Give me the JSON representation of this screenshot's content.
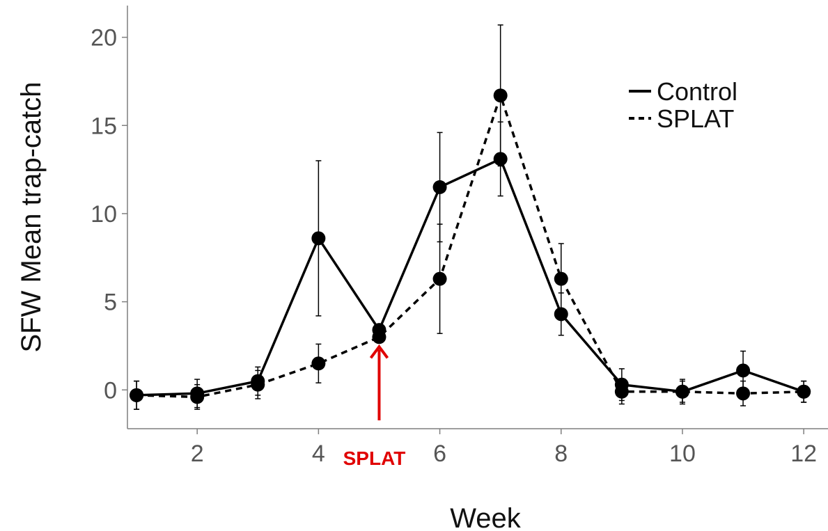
{
  "chart_data": {
    "type": "line",
    "title": "",
    "xlabel": "Week",
    "ylabel": "SFW Mean trap-catch",
    "xlim": [
      0.85,
      12.4
    ],
    "ylim": [
      -2.2,
      21.8
    ],
    "xticks": [
      2,
      4,
      6,
      8,
      10,
      12
    ],
    "xtick_labels": [
      "2",
      "4",
      "6",
      "8",
      "10",
      "12"
    ],
    "yticks": [
      0,
      5,
      10,
      15,
      20
    ],
    "ytick_labels": [
      "0",
      "5",
      "10",
      "15",
      "20"
    ],
    "grid": false,
    "legend_position": "top-right",
    "x": [
      1,
      2,
      3,
      4,
      5,
      6,
      7,
      8,
      9,
      10,
      11,
      12
    ],
    "series": [
      {
        "name": "Control",
        "line_style": "solid",
        "values": [
          -0.3,
          -0.2,
          0.5,
          8.6,
          3.4,
          11.5,
          13.1,
          4.3,
          0.3,
          -0.1,
          1.1,
          -0.1
        ],
        "error": [
          0.8,
          0.8,
          0.8,
          4.4,
          0.0,
          3.1,
          2.1,
          1.2,
          0.9,
          0.7,
          1.1,
          0.6
        ]
      },
      {
        "name": "SPLAT",
        "line_style": "dashed",
        "values": [
          -0.3,
          -0.4,
          0.3,
          1.5,
          3.0,
          6.3,
          16.7,
          6.3,
          -0.1,
          -0.1,
          -0.2,
          -0.1
        ],
        "error": [
          0.8,
          0.7,
          0.8,
          1.1,
          0.0,
          3.1,
          4.0,
          2.0,
          0.7,
          0.6,
          0.7,
          0.6
        ]
      }
    ],
    "annotations": [
      {
        "text": "SPLAT",
        "x": 5,
        "y": 3.0,
        "color": "#e00000",
        "type": "arrow-up-below-axis"
      }
    ]
  },
  "colors": {
    "series": "#000000",
    "annotation": "#e00000",
    "axis": "#7f7f7f",
    "tick_text": "#555555"
  }
}
